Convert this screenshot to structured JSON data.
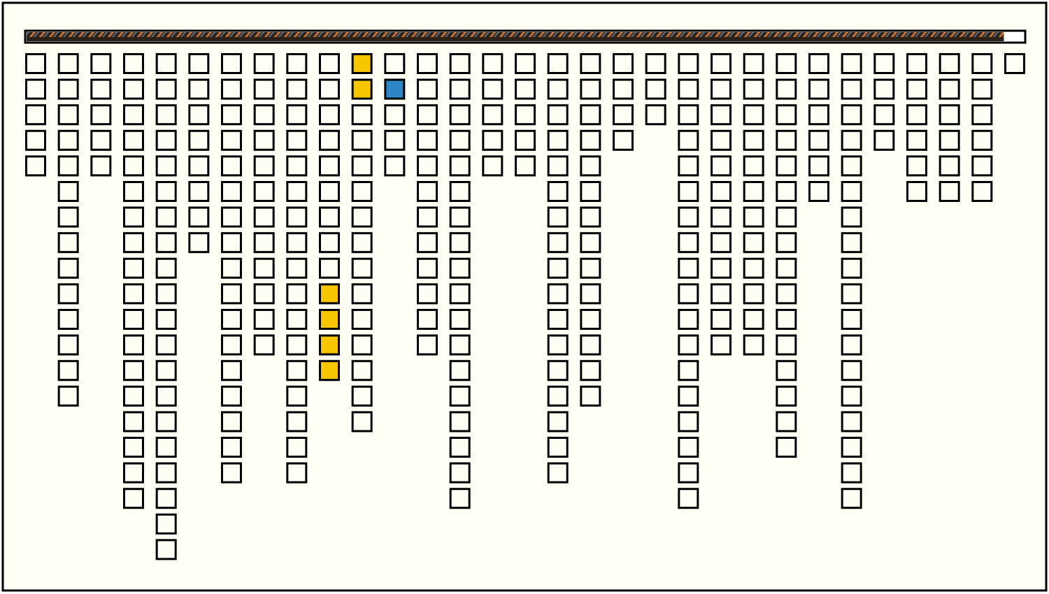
{
  "progress": 98,
  "columns": [
    [
      "#fffef4",
      "#fffef4",
      "#fffef4",
      "#fffef4",
      "#fffef4"
    ],
    [
      "#fffef4",
      "#fffef4",
      "#fffef4",
      "#fffef4",
      "#fffef4",
      "#fffef4",
      "#fffef4",
      "#fffef4",
      "#fffef4",
      "#fffef4",
      "#fffef4",
      "#fffef4",
      "#fffef4",
      "#fffef4"
    ],
    [
      "#fffef4",
      "#fffef4",
      "#fffef4",
      "#fffef4",
      "#fffef4"
    ],
    [
      "#fffef4",
      "#fffef4",
      "#fffef4",
      "#fffef4",
      "#fffef4",
      "#fffef4",
      "#fffef4",
      "#fffef4",
      "#fffef4",
      "#fffef4",
      "#fffef4",
      "#fffef4",
      "#fffef4",
      "#fffef4",
      "#fffef4",
      "#fffef4",
      "#fffef4",
      "#fffef4"
    ],
    [
      "#fffef4",
      "#fffef4",
      "#fffef4",
      "#fffef4",
      "#fffef4",
      "#fffef4",
      "#fffef4",
      "#fffef4",
      "#fffef4",
      "#fffef4",
      "#fffef4",
      "#fffef4",
      "#fffef4",
      "#fffef4",
      "#fffef4",
      "#fffef4",
      "#fffef4",
      "#fffef4",
      "#fffef4",
      "#fffef4"
    ],
    [
      "#fffef4",
      "#fffef4",
      "#fffef4",
      "#fffef4",
      "#fffef4",
      "#fffef4",
      "#fffef4",
      "#fffef4"
    ],
    [
      "#fffef4",
      "#fffef4",
      "#fffef4",
      "#fffef4",
      "#fffef4",
      "#fffef4",
      "#fffef4",
      "#fffef4",
      "#fffef4",
      "#fffef4",
      "#fffef4",
      "#fffef4",
      "#fffef4",
      "#fffef4",
      "#fffef4",
      "#fffef4",
      "#fffef4"
    ],
    [
      "#fffef4",
      "#fffef4",
      "#fffef4",
      "#fffef4",
      "#fffef4",
      "#fffef4",
      "#fffef4",
      "#fffef4",
      "#fffef4",
      "#fffef4",
      "#fffef4",
      "#fffef4"
    ],
    [
      "#fffef4",
      "#fffef4",
      "#fffef4",
      "#fffef4",
      "#fffef4",
      "#fffef4",
      "#fffef4",
      "#fffef4",
      "#fffef4",
      "#fffef4",
      "#fffef4",
      "#fffef4",
      "#fffef4",
      "#fffef4",
      "#fffef4",
      "#fffef4",
      "#fffef4"
    ],
    [
      "#fffef4",
      "#fffef4",
      "#fffef4",
      "#fffef4",
      "#fffef4",
      "#fffef4",
      "#fffef4",
      "#fffef4",
      "#fffef4",
      "#f7c600",
      "#f7c600",
      "#f7c600",
      "#f7c600"
    ],
    [
      "#f7c600",
      "#f7c600",
      "#fffef4",
      "#fffef4",
      "#fffef4",
      "#fffef4",
      "#fffef4",
      "#fffef4",
      "#fffef4",
      "#fffef4",
      "#fffef4",
      "#fffef4",
      "#fffef4",
      "#fffef4",
      "#fffef4"
    ],
    [
      "#fffef4",
      "#2f86c6",
      "#fffef4",
      "#fffef4",
      "#fffef4"
    ],
    [
      "#fffef4",
      "#fffef4",
      "#fffef4",
      "#fffef4",
      "#fffef4",
      "#fffef4",
      "#fffef4",
      "#fffef4",
      "#fffef4",
      "#fffef4",
      "#fffef4",
      "#fffef4"
    ],
    [
      "#fffef4",
      "#fffef4",
      "#fffef4",
      "#fffef4",
      "#fffef4",
      "#fffef4",
      "#fffef4",
      "#fffef4",
      "#fffef4",
      "#fffef4",
      "#fffef4",
      "#fffef4",
      "#fffef4",
      "#fffef4",
      "#fffef4",
      "#fffef4",
      "#fffef4",
      "#fffef4"
    ],
    [
      "#fffef4",
      "#fffef4",
      "#fffef4",
      "#fffef4",
      "#fffef4"
    ],
    [
      "#fffef4",
      "#fffef4",
      "#fffef4",
      "#fffef4",
      "#fffef4"
    ],
    [
      "#fffef4",
      "#fffef4",
      "#fffef4",
      "#fffef4",
      "#fffef4",
      "#fffef4",
      "#fffef4",
      "#fffef4",
      "#fffef4",
      "#fffef4",
      "#fffef4",
      "#fffef4",
      "#fffef4",
      "#fffef4",
      "#fffef4",
      "#fffef4",
      "#fffef4"
    ],
    [
      "#fffef4",
      "#fffef4",
      "#fffef4",
      "#fffef4",
      "#fffef4",
      "#fffef4",
      "#fffef4",
      "#fffef4",
      "#fffef4",
      "#fffef4",
      "#fffef4",
      "#fffef4",
      "#fffef4",
      "#fffef4"
    ],
    [
      "#fffef4",
      "#fffef4",
      "#fffef4",
      "#fffef4"
    ],
    [
      "#fffef4",
      "#fffef4",
      "#fffef4"
    ],
    [
      "#fffef4",
      "#fffef4",
      "#fffef4",
      "#fffef4",
      "#fffef4",
      "#fffef4",
      "#fffef4",
      "#fffef4",
      "#fffef4",
      "#fffef4",
      "#fffef4",
      "#fffef4",
      "#fffef4",
      "#fffef4",
      "#fffef4",
      "#fffef4",
      "#fffef4",
      "#fffef4"
    ],
    [
      "#fffef4",
      "#fffef4",
      "#fffef4",
      "#fffef4",
      "#fffef4",
      "#fffef4",
      "#fffef4",
      "#fffef4",
      "#fffef4",
      "#fffef4",
      "#fffef4",
      "#fffef4"
    ],
    [
      "#fffef4",
      "#fffef4",
      "#fffef4",
      "#fffef4",
      "#fffef4",
      "#fffef4",
      "#fffef4",
      "#fffef4",
      "#fffef4",
      "#fffef4",
      "#fffef4",
      "#fffef4"
    ],
    [
      "#fffef4",
      "#fffef4",
      "#fffef4",
      "#fffef4",
      "#fffef4",
      "#fffef4",
      "#fffef4",
      "#fffef4",
      "#fffef4",
      "#fffef4",
      "#fffef4",
      "#fffef4",
      "#fffef4",
      "#fffef4",
      "#fffef4",
      "#fffef4"
    ],
    [
      "#fffef4",
      "#fffef4",
      "#fffef4",
      "#fffef4",
      "#fffef4",
      "#fffef4"
    ],
    [
      "#fffef4",
      "#fffef4",
      "#fffef4",
      "#fffef4",
      "#fffef4",
      "#fffef4",
      "#fffef4",
      "#fffef4",
      "#fffef4",
      "#fffef4",
      "#fffef4",
      "#fffef4",
      "#fffef4",
      "#fffef4",
      "#fffef4",
      "#fffef4",
      "#fffef4",
      "#fffef4"
    ],
    [
      "#fffef4",
      "#fffef4",
      "#fffef4",
      "#fffef4"
    ],
    [
      "#fffef4",
      "#fffef4",
      "#fffef4",
      "#fffef4",
      "#fffef4",
      "#fffef4"
    ],
    [
      "#fffef4",
      "#fffef4",
      "#fffef4",
      "#fffef4",
      "#fffef4",
      "#fffef4"
    ],
    [
      "#fffef4",
      "#fffef4",
      "#fffef4",
      "#fffef4",
      "#fffef4",
      "#fffef4"
    ],
    [
      "#fffef4"
    ]
  ]
}
